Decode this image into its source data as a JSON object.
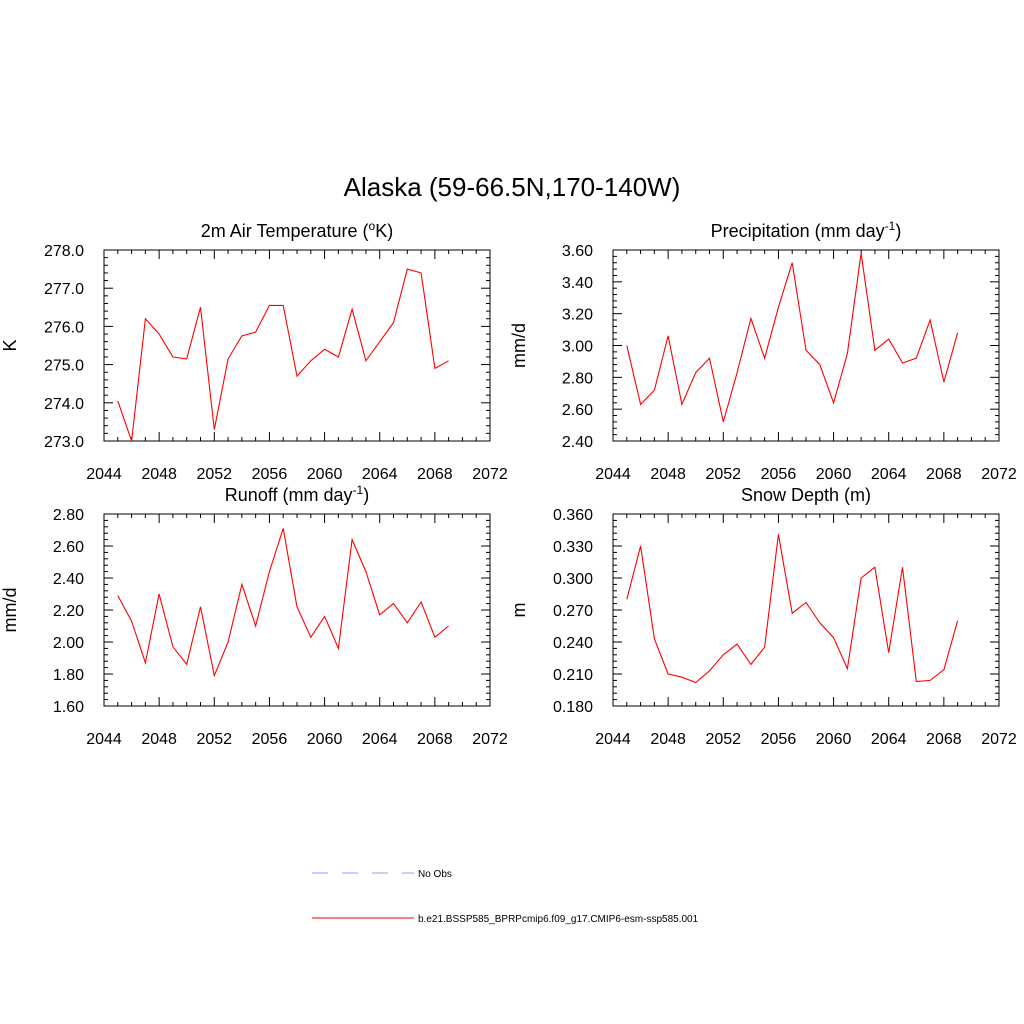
{
  "figure": {
    "title": "Alaska (59-66.5N,170-140W)"
  },
  "legend": {
    "items": [
      {
        "label": "No Obs",
        "color": "#9999ff",
        "style": "dashed"
      },
      {
        "label": "b.e21.BSSP585_BPRPcmip6.f09_g17.CMIP6-esm-ssp585.001",
        "color": "#ff0000",
        "style": "solid"
      }
    ]
  },
  "chart_data": [
    {
      "type": "line",
      "title": "2m Air Temperature (",
      "title_sup": "o",
      "title_after": "K)",
      "xlabel": "",
      "ylabel": "K",
      "xlim": [
        2044,
        2072
      ],
      "ylim": [
        273.0,
        278.0
      ],
      "xticks": [
        "2044",
        "2048",
        "2052",
        "2056",
        "2060",
        "2064",
        "2068",
        "2072"
      ],
      "yticks": [
        "273.0",
        "274.0",
        "275.0",
        "276.0",
        "277.0",
        "278.0"
      ],
      "series": [
        {
          "color": "#ff0000",
          "x": [
            2045,
            2046,
            2047,
            2048,
            2049,
            2050,
            2051,
            2052,
            2053,
            2054,
            2055,
            2056,
            2057,
            2058,
            2059,
            2060,
            2061,
            2062,
            2063,
            2064,
            2065,
            2066,
            2067,
            2068,
            2069
          ],
          "values": [
            274.05,
            273.0,
            276.2,
            275.8,
            275.2,
            275.15,
            276.5,
            273.3,
            275.15,
            275.75,
            275.85,
            276.55,
            276.55,
            274.7,
            275.1,
            275.4,
            275.2,
            276.45,
            275.1,
            275.6,
            276.1,
            277.5,
            277.4,
            274.9,
            275.1
          ]
        }
      ]
    },
    {
      "type": "line",
      "title": "Precipitation (mm day",
      "title_sup": "-1",
      "title_after": ")",
      "xlabel": "",
      "ylabel": "mm/d",
      "xlim": [
        2044,
        2072
      ],
      "ylim": [
        2.4,
        3.6
      ],
      "xticks": [
        "2044",
        "2048",
        "2052",
        "2056",
        "2060",
        "2064",
        "2068",
        "2072"
      ],
      "yticks": [
        "2.40",
        "2.60",
        "2.80",
        "3.00",
        "3.20",
        "3.40",
        "3.60"
      ],
      "series": [
        {
          "color": "#ff0000",
          "x": [
            2045,
            2046,
            2047,
            2048,
            2049,
            2050,
            2051,
            2052,
            2053,
            2054,
            2055,
            2056,
            2057,
            2058,
            2059,
            2060,
            2061,
            2062,
            2063,
            2064,
            2065,
            2066,
            2067,
            2068,
            2069
          ],
          "values": [
            3.0,
            2.63,
            2.72,
            3.06,
            2.63,
            2.83,
            2.92,
            2.52,
            2.83,
            3.17,
            2.92,
            3.24,
            3.52,
            2.97,
            2.88,
            2.64,
            2.95,
            3.58,
            2.97,
            3.04,
            2.89,
            2.92,
            3.16,
            2.77,
            3.08
          ]
        }
      ]
    },
    {
      "type": "line",
      "title": "Runoff (mm day",
      "title_sup": "-1",
      "title_after": ")",
      "xlabel": "",
      "ylabel": "mm/d",
      "xlim": [
        2044,
        2072
      ],
      "ylim": [
        1.6,
        2.8
      ],
      "xticks": [
        "2044",
        "2048",
        "2052",
        "2056",
        "2060",
        "2064",
        "2068",
        "2072"
      ],
      "yticks": [
        "1.60",
        "1.80",
        "2.00",
        "2.20",
        "2.40",
        "2.60",
        "2.80"
      ],
      "series": [
        {
          "color": "#ff0000",
          "x": [
            2045,
            2046,
            2047,
            2048,
            2049,
            2050,
            2051,
            2052,
            2053,
            2054,
            2055,
            2056,
            2057,
            2058,
            2059,
            2060,
            2061,
            2062,
            2063,
            2064,
            2065,
            2066,
            2067,
            2068,
            2069
          ],
          "values": [
            2.29,
            2.13,
            1.87,
            2.3,
            1.97,
            1.86,
            2.22,
            1.79,
            2.0,
            2.36,
            2.1,
            2.44,
            2.71,
            2.22,
            2.03,
            2.16,
            1.96,
            2.64,
            2.44,
            2.17,
            2.24,
            2.12,
            2.25,
            2.03,
            2.1
          ]
        }
      ]
    },
    {
      "type": "line",
      "title": "Snow Depth (m)",
      "title_sup": "",
      "title_after": "",
      "xlabel": "",
      "ylabel": "m",
      "xlim": [
        2044,
        2072
      ],
      "ylim": [
        0.18,
        0.36
      ],
      "xticks": [
        "2044",
        "2048",
        "2052",
        "2056",
        "2060",
        "2064",
        "2068",
        "2072"
      ],
      "yticks": [
        "0.180",
        "0.210",
        "0.240",
        "0.270",
        "0.300",
        "0.330",
        "0.360"
      ],
      "series": [
        {
          "color": "#ff0000",
          "x": [
            2045,
            2046,
            2047,
            2048,
            2049,
            2050,
            2051,
            2052,
            2053,
            2054,
            2055,
            2056,
            2057,
            2058,
            2059,
            2060,
            2061,
            2062,
            2063,
            2064,
            2065,
            2066,
            2067,
            2068,
            2069
          ],
          "values": [
            0.28,
            0.33,
            0.243,
            0.21,
            0.207,
            0.202,
            0.213,
            0.228,
            0.238,
            0.219,
            0.235,
            0.341,
            0.267,
            0.277,
            0.258,
            0.244,
            0.215,
            0.3,
            0.31,
            0.23,
            0.31,
            0.203,
            0.204,
            0.214,
            0.26
          ]
        }
      ]
    }
  ]
}
